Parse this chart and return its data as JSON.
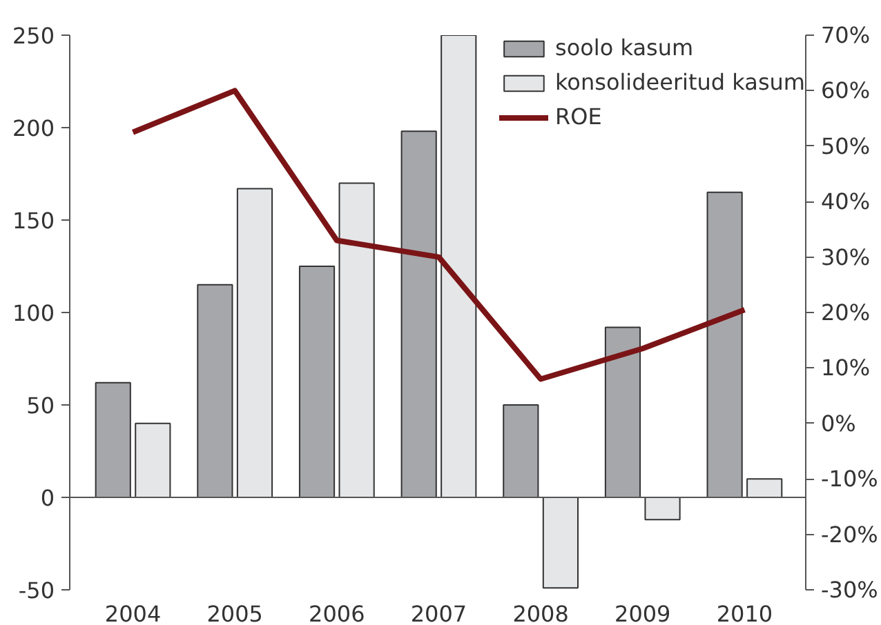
{
  "chart_data": {
    "type": "bar",
    "categories": [
      "2004",
      "2005",
      "2006",
      "2007",
      "2008",
      "2009",
      "2010"
    ],
    "series": [
      {
        "name": "soolo kasum",
        "color": "#a6a7ab",
        "values": [
          62,
          115,
          125,
          198,
          50,
          92,
          165
        ]
      },
      {
        "name": "konsolideeritud kasum",
        "color": "#e5e6e8",
        "values": [
          40,
          167,
          170,
          250,
          -49,
          -12,
          10
        ]
      },
      {
        "name": "ROE",
        "type": "line",
        "axis": "y2",
        "color": "#7b1416",
        "values": [
          52.5,
          60,
          33,
          30,
          8,
          13.5,
          20.5
        ]
      }
    ],
    "ylim": [
      -50,
      250
    ],
    "yticks": [
      -50,
      0,
      50,
      100,
      150,
      200,
      250
    ],
    "y2lim": [
      -30,
      70
    ],
    "y2ticks": [
      {
        "value": -30,
        "label": "-30%"
      },
      {
        "value": -20,
        "label": "-20%"
      },
      {
        "value": -10,
        "label": "-10%"
      },
      {
        "value": 0,
        "label": "0%"
      },
      {
        "value": 10,
        "label": "10%"
      },
      {
        "value": 20,
        "label": "20%"
      },
      {
        "value": 30,
        "label": "30%"
      },
      {
        "value": 40,
        "label": "40%"
      },
      {
        "value": 50,
        "label": "50%"
      },
      {
        "value": 60,
        "label": "60%"
      },
      {
        "value": 70,
        "label": "70%"
      }
    ],
    "legend": "top right",
    "marker": "none",
    "line_style": "solid"
  }
}
